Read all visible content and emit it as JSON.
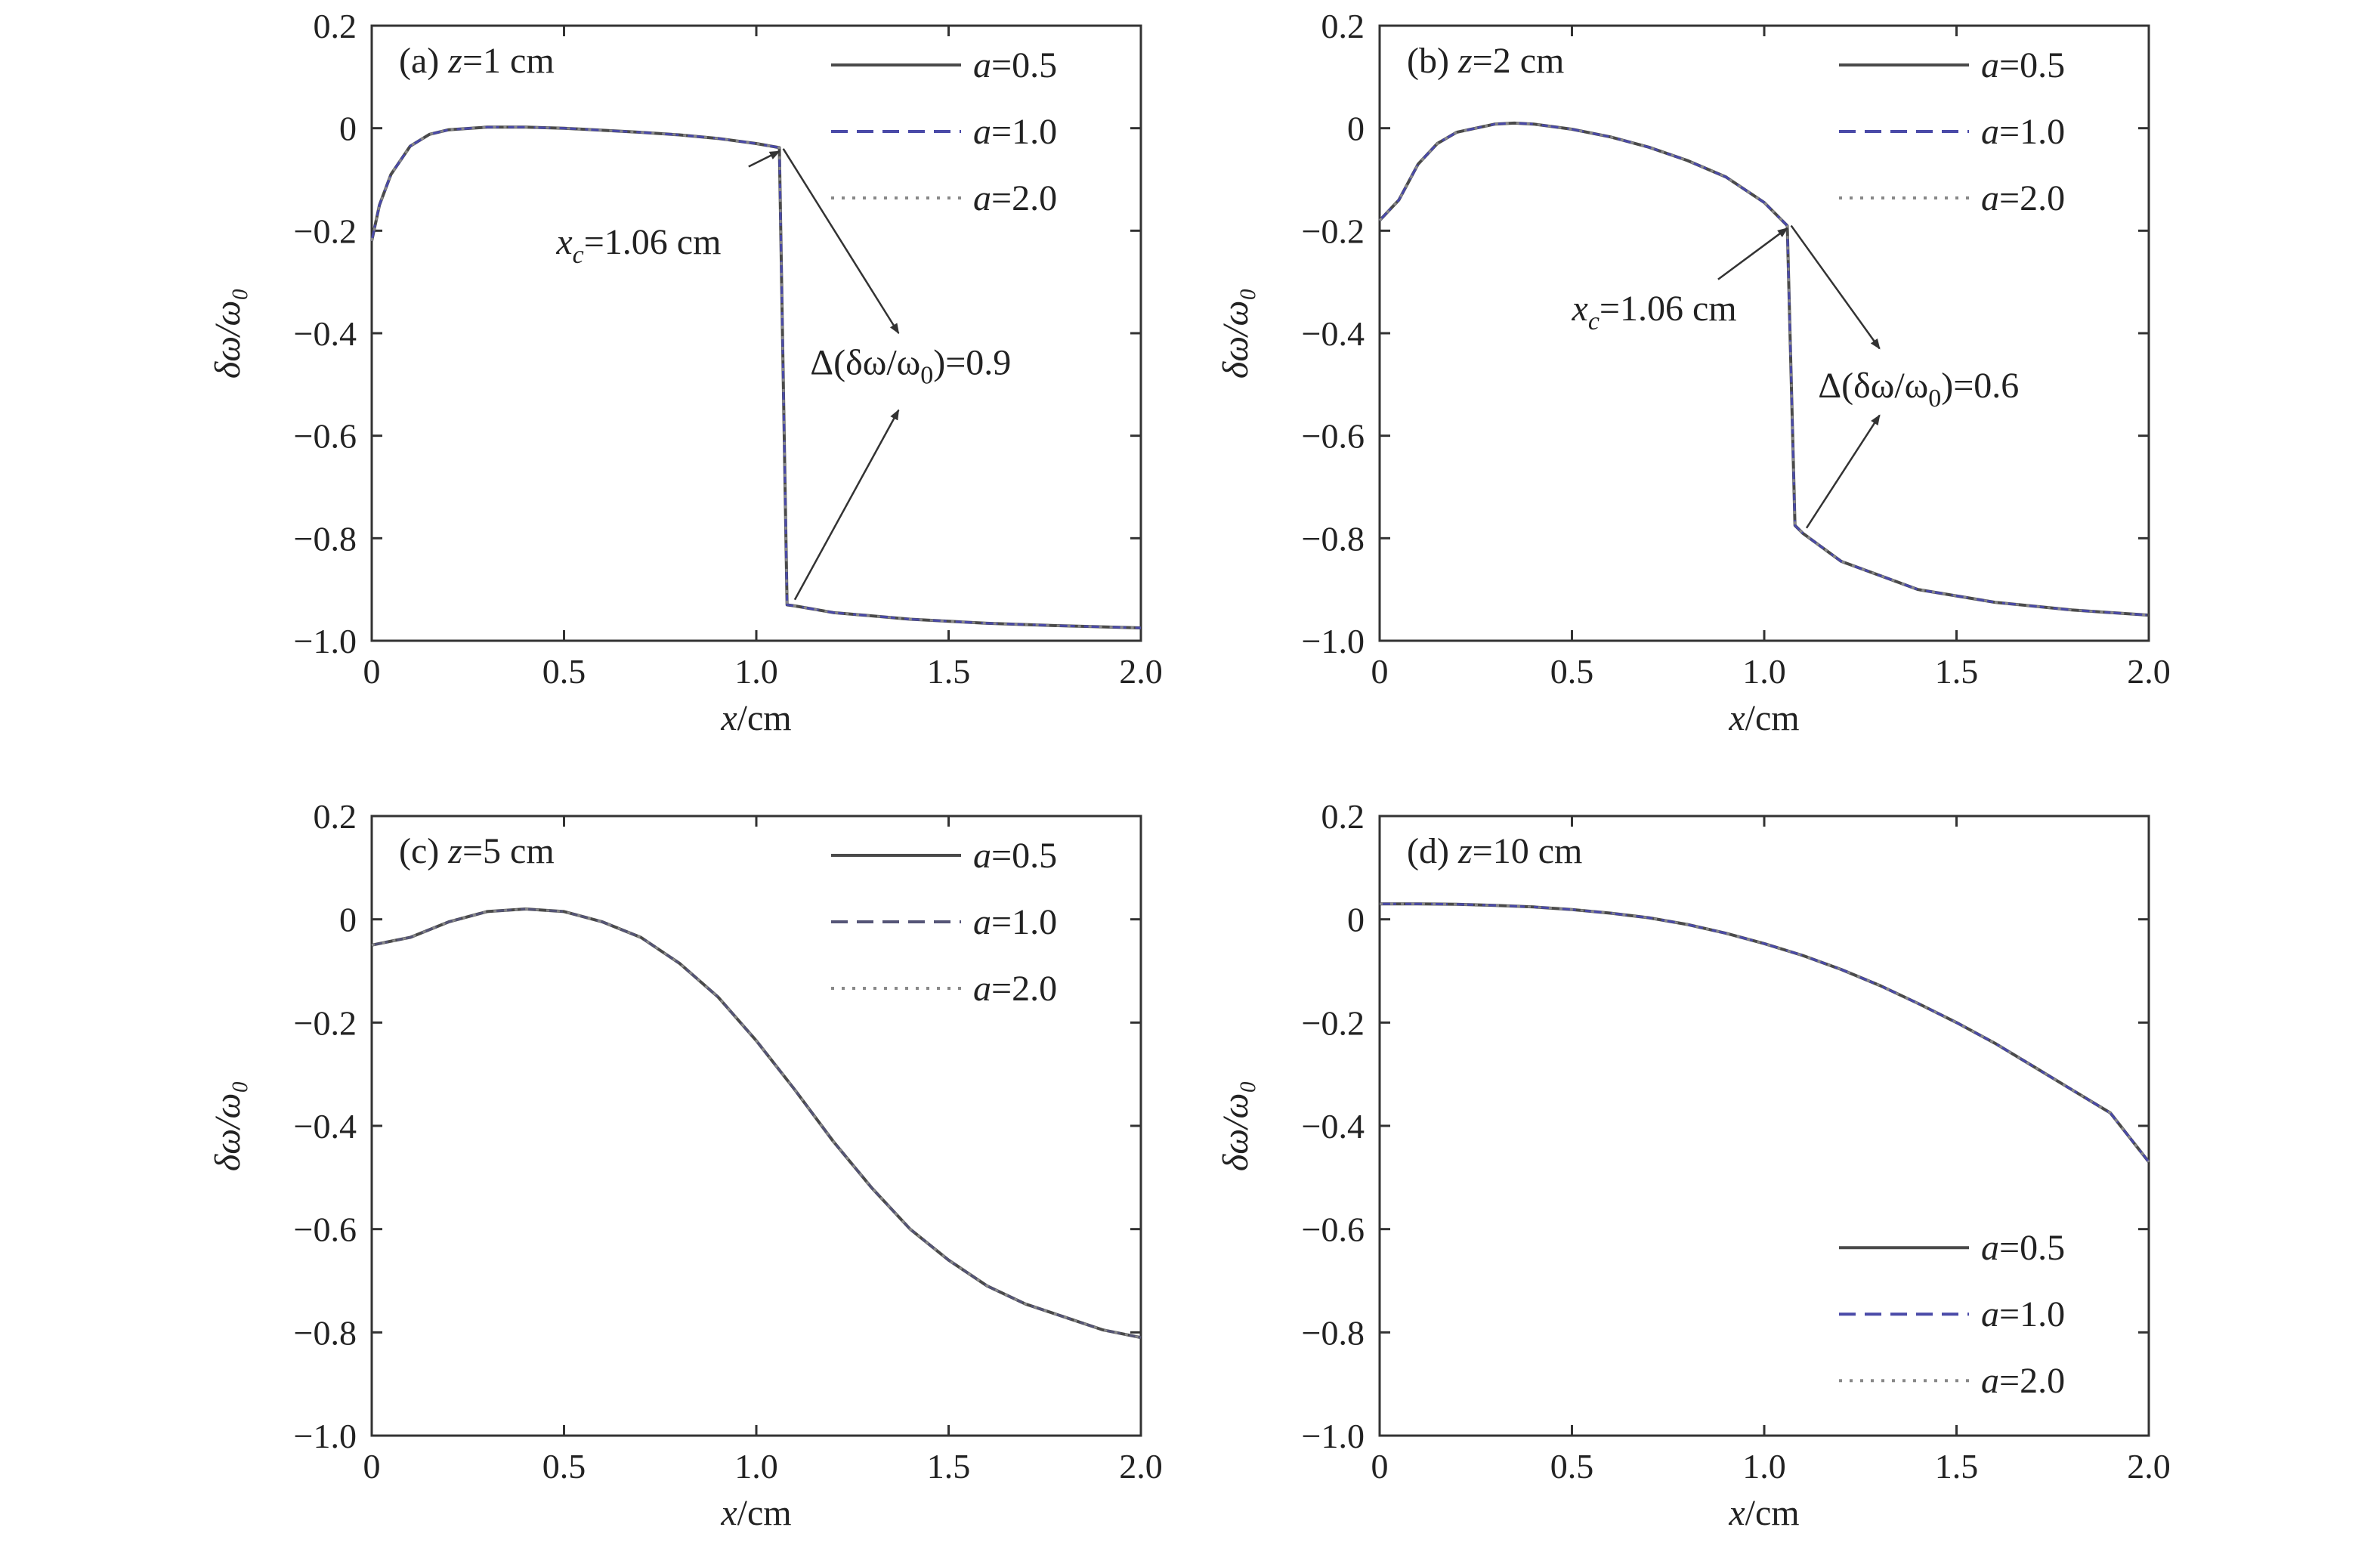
{
  "chart_data": [
    {
      "type": "line",
      "panel_label": "(a)",
      "panel_var": "z",
      "panel_value": "=1 cm",
      "xlabel_var": "x",
      "xlabel_unit": "/cm",
      "ylabel": "δω/ω₀",
      "xlim": [
        0,
        2.0
      ],
      "ylim": [
        -1.0,
        0.2
      ],
      "xticks": [
        "0",
        "0.5",
        "1.0",
        "1.5",
        "2.0"
      ],
      "yticks": [
        "0.2",
        "0",
        "−0.2",
        "−0.4",
        "−0.6",
        "−0.8",
        "−1.0"
      ],
      "legend_position": "top-right",
      "series": [
        {
          "name": "a=0.5",
          "var": "a",
          "val": "=0.5",
          "style": "solid",
          "color": "#4a4a4a",
          "x": [
            0,
            0.02,
            0.05,
            0.1,
            0.15,
            0.2,
            0.3,
            0.4,
            0.5,
            0.6,
            0.7,
            0.8,
            0.9,
            1.0,
            1.06,
            1.08,
            1.1,
            1.2,
            1.4,
            1.6,
            1.8,
            2.0
          ],
          "y": [
            -0.22,
            -0.15,
            -0.09,
            -0.035,
            -0.012,
            -0.003,
            0.002,
            0.002,
            0.0,
            -0.004,
            -0.008,
            -0.013,
            -0.02,
            -0.03,
            -0.038,
            -0.93,
            -0.932,
            -0.945,
            -0.958,
            -0.966,
            -0.971,
            -0.975
          ]
        },
        {
          "name": "a=1.0",
          "var": "a",
          "val": "=1.0",
          "style": "dashed",
          "color": "#4a4aa8",
          "x": [
            0,
            0.02,
            0.05,
            0.1,
            0.15,
            0.2,
            0.3,
            0.4,
            0.5,
            0.6,
            0.7,
            0.8,
            0.9,
            1.0,
            1.06,
            1.08,
            1.1,
            1.2,
            1.4,
            1.6,
            1.8,
            2.0
          ],
          "y": [
            -0.22,
            -0.15,
            -0.09,
            -0.035,
            -0.012,
            -0.003,
            0.002,
            0.002,
            0.0,
            -0.004,
            -0.008,
            -0.013,
            -0.02,
            -0.03,
            -0.038,
            -0.93,
            -0.932,
            -0.945,
            -0.958,
            -0.966,
            -0.971,
            -0.975
          ]
        },
        {
          "name": "a=2.0",
          "var": "a",
          "val": "=2.0",
          "style": "dotted",
          "color": "#888888",
          "x": [
            0,
            0.02,
            0.05,
            0.1,
            0.15,
            0.2,
            0.3,
            0.4,
            0.5,
            0.6,
            0.7,
            0.8,
            0.9,
            1.0,
            1.06,
            1.08,
            1.1,
            1.2,
            1.4,
            1.6,
            1.8,
            2.0
          ],
          "y": [
            -0.22,
            -0.15,
            -0.09,
            -0.035,
            -0.012,
            -0.003,
            0.002,
            0.002,
            0.0,
            -0.004,
            -0.008,
            -0.013,
            -0.02,
            -0.03,
            -0.038,
            -0.93,
            -0.932,
            -0.945,
            -0.958,
            -0.966,
            -0.971,
            -0.975
          ]
        }
      ],
      "annotations": [
        {
          "prefix": "x",
          "sub": "c",
          "suffix": "=1.06 cm",
          "text_x": 0.48,
          "text_y": -0.245,
          "arrows": [
            {
              "from": [
                0.98,
                -0.075
              ],
              "to": [
                1.06,
                -0.045
              ]
            }
          ]
        },
        {
          "prefix": "Δ(δω/ω",
          "sub": "0",
          "suffix": ")=0.9",
          "text_x": 1.14,
          "text_y": -0.48,
          "arrows": [
            {
              "from": [
                1.07,
                -0.04
              ],
              "to": [
                1.37,
                -0.4
              ]
            },
            {
              "from": [
                1.1,
                -0.92
              ],
              "to": [
                1.37,
                -0.55
              ]
            }
          ]
        }
      ]
    },
    {
      "type": "line",
      "panel_label": "(b)",
      "panel_var": "z",
      "panel_value": "=2 cm",
      "xlabel_var": "x",
      "xlabel_unit": "/cm",
      "ylabel": "δω/ω₀",
      "xlim": [
        0,
        2.0
      ],
      "ylim": [
        -1.0,
        0.2
      ],
      "xticks": [
        "0",
        "0.5",
        "1.0",
        "1.5",
        "2.0"
      ],
      "yticks": [
        "0.2",
        "0",
        "−0.2",
        "−0.4",
        "−0.6",
        "−0.8",
        "−1.0"
      ],
      "legend_position": "top-right",
      "series": [
        {
          "name": "a=0.5",
          "var": "a",
          "val": "=0.5",
          "style": "solid",
          "color": "#4a4a4a",
          "x": [
            0,
            0.05,
            0.1,
            0.15,
            0.2,
            0.3,
            0.35,
            0.4,
            0.5,
            0.6,
            0.7,
            0.8,
            0.9,
            1.0,
            1.06,
            1.08,
            1.1,
            1.2,
            1.4,
            1.6,
            1.8,
            2.0
          ],
          "y": [
            -0.18,
            -0.14,
            -0.07,
            -0.03,
            -0.008,
            0.008,
            0.01,
            0.008,
            -0.002,
            -0.017,
            -0.037,
            -0.063,
            -0.095,
            -0.145,
            -0.19,
            -0.775,
            -0.79,
            -0.845,
            -0.9,
            -0.925,
            -0.94,
            -0.95
          ]
        },
        {
          "name": "a=1.0",
          "var": "a",
          "val": "=1.0",
          "style": "dashed",
          "color": "#4a4aa8",
          "x": [
            0,
            0.05,
            0.1,
            0.15,
            0.2,
            0.3,
            0.35,
            0.4,
            0.5,
            0.6,
            0.7,
            0.8,
            0.9,
            1.0,
            1.06,
            1.08,
            1.1,
            1.2,
            1.4,
            1.6,
            1.8,
            2.0
          ],
          "y": [
            -0.18,
            -0.14,
            -0.07,
            -0.03,
            -0.008,
            0.008,
            0.01,
            0.008,
            -0.002,
            -0.017,
            -0.037,
            -0.063,
            -0.095,
            -0.145,
            -0.19,
            -0.775,
            -0.79,
            -0.845,
            -0.9,
            -0.925,
            -0.94,
            -0.95
          ]
        },
        {
          "name": "a=2.0",
          "var": "a",
          "val": "=2.0",
          "style": "dotted",
          "color": "#888888",
          "x": [
            0,
            0.05,
            0.1,
            0.15,
            0.2,
            0.3,
            0.35,
            0.4,
            0.5,
            0.6,
            0.7,
            0.8,
            0.9,
            1.0,
            1.06,
            1.08,
            1.1,
            1.2,
            1.4,
            1.6,
            1.8,
            2.0
          ],
          "y": [
            -0.18,
            -0.14,
            -0.07,
            -0.03,
            -0.008,
            0.008,
            0.01,
            0.008,
            -0.002,
            -0.017,
            -0.037,
            -0.063,
            -0.095,
            -0.145,
            -0.19,
            -0.775,
            -0.79,
            -0.845,
            -0.9,
            -0.925,
            -0.94,
            -0.95
          ]
        }
      ],
      "annotations": [
        {
          "prefix": "x",
          "sub": "c",
          "suffix": "=1.06 cm",
          "text_x": 0.5,
          "text_y": -0.375,
          "arrows": [
            {
              "from": [
                0.88,
                -0.295
              ],
              "to": [
                1.06,
                -0.195
              ]
            }
          ]
        },
        {
          "prefix": "Δ(δω/ω",
          "sub": "0",
          "suffix": ")=0.6",
          "text_x": 1.14,
          "text_y": -0.525,
          "arrows": [
            {
              "from": [
                1.07,
                -0.19
              ],
              "to": [
                1.3,
                -0.43
              ]
            },
            {
              "from": [
                1.11,
                -0.78
              ],
              "to": [
                1.3,
                -0.56
              ]
            }
          ]
        }
      ]
    },
    {
      "type": "line",
      "panel_label": "(c)",
      "panel_var": "z",
      "panel_value": "=5 cm",
      "xlabel_var": "x",
      "xlabel_unit": "/cm",
      "ylabel": "δω/ω₀",
      "xlim": [
        0,
        2.0
      ],
      "ylim": [
        -1.0,
        0.2
      ],
      "xticks": [
        "0",
        "0.5",
        "1.0",
        "1.5",
        "2.0"
      ],
      "yticks": [
        "0.2",
        "0",
        "−0.2",
        "−0.4",
        "−0.6",
        "−0.8",
        "−1.0"
      ],
      "legend_position": "top-right",
      "series": [
        {
          "name": "a=0.5",
          "var": "a",
          "val": "=0.5",
          "style": "solid",
          "color": "#4a4a4a",
          "x": [
            0,
            0.1,
            0.2,
            0.3,
            0.4,
            0.5,
            0.6,
            0.7,
            0.8,
            0.9,
            1.0,
            1.1,
            1.2,
            1.3,
            1.4,
            1.5,
            1.6,
            1.7,
            1.8,
            1.9,
            2.0
          ],
          "y": [
            -0.05,
            -0.035,
            -0.005,
            0.015,
            0.02,
            0.015,
            -0.005,
            -0.035,
            -0.085,
            -0.15,
            -0.235,
            -0.33,
            -0.43,
            -0.52,
            -0.6,
            -0.66,
            -0.71,
            -0.745,
            -0.77,
            -0.795,
            -0.81
          ]
        },
        {
          "name": "a=1.0",
          "var": "a",
          "val": "=1.0",
          "style": "dashed",
          "color": "#555577",
          "x": [
            0,
            0.1,
            0.2,
            0.3,
            0.4,
            0.5,
            0.6,
            0.7,
            0.8,
            0.9,
            1.0,
            1.1,
            1.2,
            1.3,
            1.4,
            1.5,
            1.6,
            1.7,
            1.8,
            1.9,
            2.0
          ],
          "y": [
            -0.05,
            -0.035,
            -0.005,
            0.015,
            0.02,
            0.015,
            -0.005,
            -0.035,
            -0.085,
            -0.15,
            -0.235,
            -0.33,
            -0.43,
            -0.52,
            -0.6,
            -0.66,
            -0.71,
            -0.745,
            -0.77,
            -0.795,
            -0.81
          ]
        },
        {
          "name": "a=2.0",
          "var": "a",
          "val": "=2.0",
          "style": "dotted",
          "color": "#888888",
          "x": [
            0,
            0.1,
            0.2,
            0.3,
            0.4,
            0.5,
            0.6,
            0.7,
            0.8,
            0.9,
            1.0,
            1.1,
            1.2,
            1.3,
            1.4,
            1.5,
            1.6,
            1.7,
            1.8,
            1.9,
            2.0
          ],
          "y": [
            -0.05,
            -0.035,
            -0.005,
            0.015,
            0.02,
            0.015,
            -0.005,
            -0.035,
            -0.085,
            -0.15,
            -0.235,
            -0.33,
            -0.43,
            -0.52,
            -0.6,
            -0.66,
            -0.71,
            -0.745,
            -0.77,
            -0.795,
            -0.81
          ]
        }
      ],
      "annotations": []
    },
    {
      "type": "line",
      "panel_label": "(d)",
      "panel_var": "z",
      "panel_value": "=10 cm",
      "xlabel_var": "x",
      "xlabel_unit": "/cm",
      "ylabel": "δω/ω₀",
      "xlim": [
        0,
        2.0
      ],
      "ylim": [
        -1.0,
        0.2
      ],
      "xticks": [
        "0",
        "0.5",
        "1.0",
        "1.5",
        "2.0"
      ],
      "yticks": [
        "0.2",
        "0",
        "−0.2",
        "−0.4",
        "−0.6",
        "−0.8",
        "−1.0"
      ],
      "legend_position": "bottom-right",
      "series": [
        {
          "name": "a=0.5",
          "var": "a",
          "val": "=0.5",
          "style": "solid",
          "color": "#4a4a4a",
          "x": [
            0,
            0.1,
            0.2,
            0.3,
            0.4,
            0.5,
            0.6,
            0.7,
            0.8,
            0.9,
            1.0,
            1.1,
            1.2,
            1.3,
            1.4,
            1.5,
            1.6,
            1.7,
            1.8,
            1.9,
            2.0
          ],
          "y": [
            0.03,
            0.03,
            0.029,
            0.027,
            0.024,
            0.019,
            0.012,
            0.003,
            -0.01,
            -0.027,
            -0.047,
            -0.07,
            -0.097,
            -0.128,
            -0.163,
            -0.2,
            -0.24,
            -0.285,
            -0.33,
            -0.375,
            -0.47
          ]
        },
        {
          "name": "a=1.0",
          "var": "a",
          "val": "=1.0",
          "style": "dashed",
          "color": "#4a4aa8",
          "x": [
            0,
            0.1,
            0.2,
            0.3,
            0.4,
            0.5,
            0.6,
            0.7,
            0.8,
            0.9,
            1.0,
            1.1,
            1.2,
            1.3,
            1.4,
            1.5,
            1.6,
            1.7,
            1.8,
            1.9,
            2.0
          ],
          "y": [
            0.03,
            0.03,
            0.029,
            0.027,
            0.024,
            0.019,
            0.012,
            0.003,
            -0.01,
            -0.027,
            -0.047,
            -0.07,
            -0.097,
            -0.128,
            -0.163,
            -0.2,
            -0.24,
            -0.285,
            -0.33,
            -0.375,
            -0.47
          ]
        },
        {
          "name": "a=2.0",
          "var": "a",
          "val": "=2.0",
          "style": "dotted",
          "color": "#888888",
          "x": [
            0,
            0.1,
            0.2,
            0.3,
            0.4,
            0.5,
            0.6,
            0.7,
            0.8,
            0.9,
            1.0,
            1.1,
            1.2,
            1.3,
            1.4,
            1.5,
            1.6,
            1.7,
            1.8,
            1.9,
            2.0
          ],
          "y": [
            0.03,
            0.03,
            0.029,
            0.027,
            0.024,
            0.019,
            0.012,
            0.003,
            -0.01,
            -0.027,
            -0.047,
            -0.07,
            -0.097,
            -0.128,
            -0.163,
            -0.2,
            -0.24,
            -0.285,
            -0.33,
            -0.375,
            -0.47
          ]
        }
      ],
      "annotations": []
    }
  ]
}
